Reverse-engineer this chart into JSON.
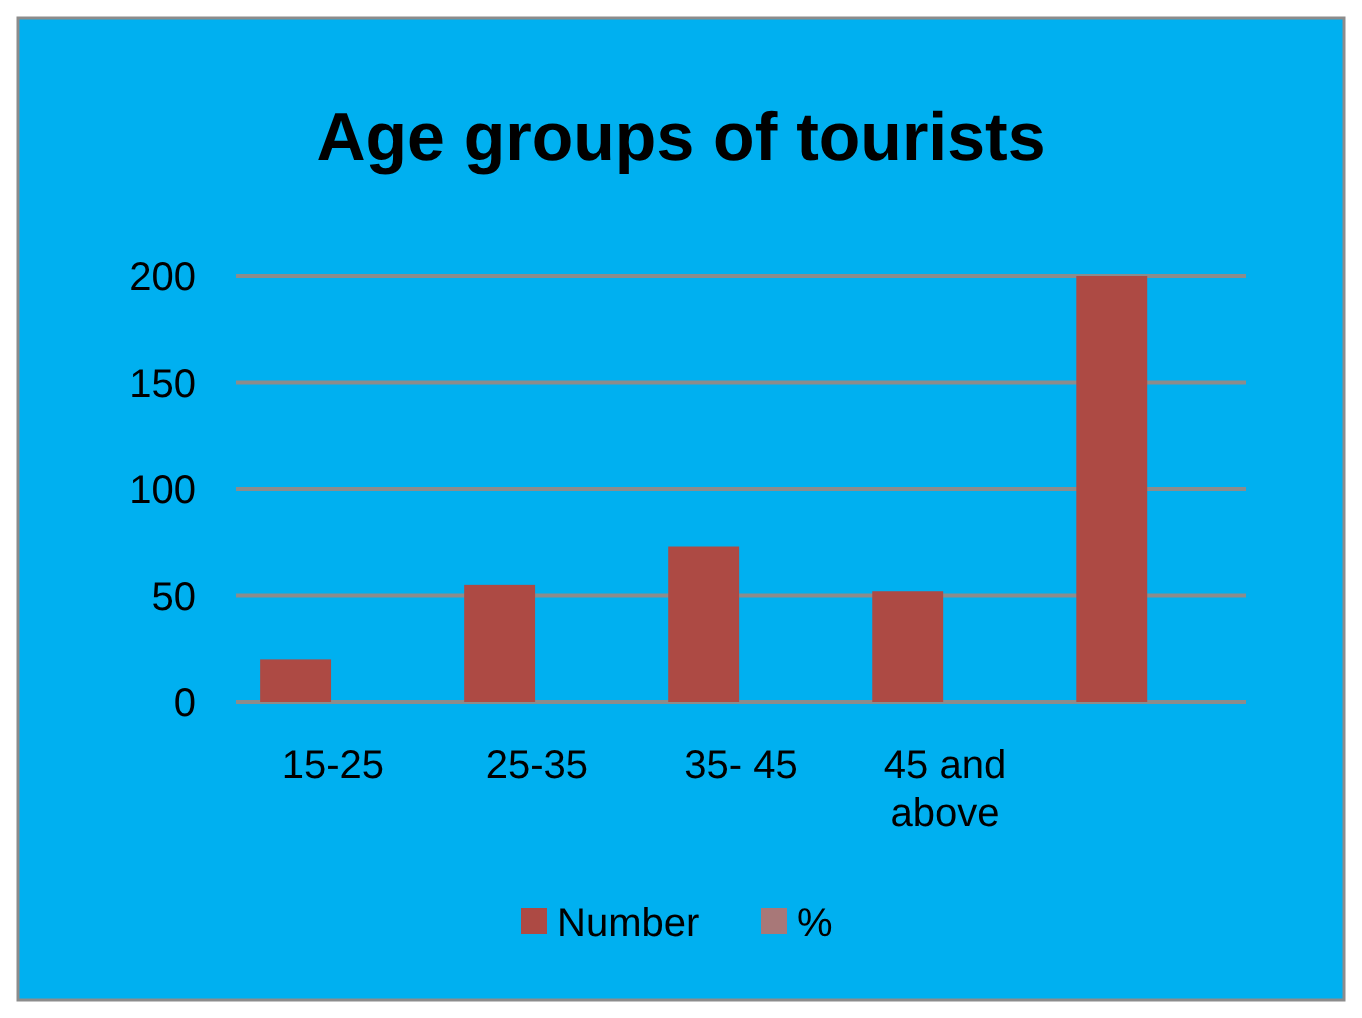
{
  "chart_data": {
    "type": "bar",
    "title": "Age groups of  tourists",
    "categories": [
      "15-25",
      "25-35",
      "35- 45",
      "45 and above",
      null
    ],
    "series": [
      {
        "name": "Number",
        "color": "#ad4a44",
        "values": [
          20,
          55,
          73,
          52,
          200
        ]
      },
      {
        "name": "%",
        "color": "#a87878",
        "values": [
          null,
          null,
          null,
          null,
          null
        ]
      }
    ],
    "ylim": [
      0,
      200
    ],
    "yticks": [
      0,
      50,
      100,
      150,
      200
    ],
    "grid": "y",
    "legend": "bottom"
  }
}
